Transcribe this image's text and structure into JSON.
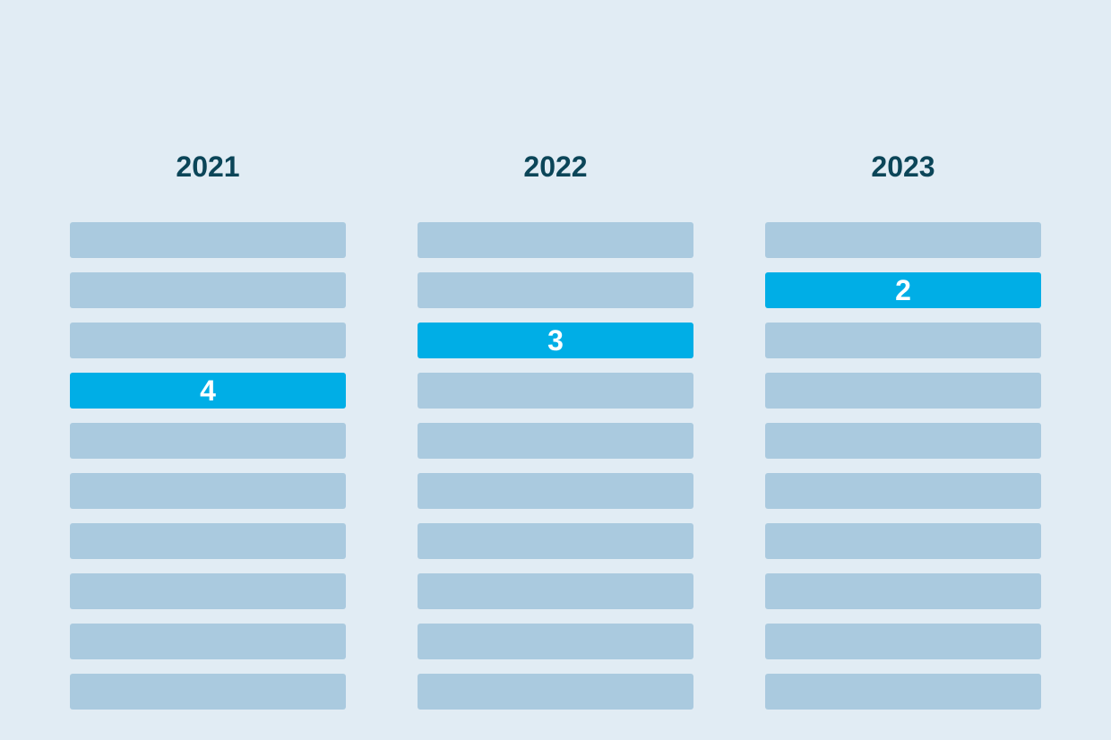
{
  "chart_data": {
    "type": "table",
    "total_slots": 10,
    "colors": {
      "background": "#e1ecf4",
      "slot_inactive": "#aacadf",
      "slot_active": "#00aee6",
      "year_text": "#0b4558",
      "rank_text": "#ffffff"
    },
    "columns": [
      {
        "year": "2021",
        "rank": 4,
        "rank_label": "4"
      },
      {
        "year": "2022",
        "rank": 3,
        "rank_label": "3"
      },
      {
        "year": "2023",
        "rank": 2,
        "rank_label": "2"
      }
    ]
  }
}
